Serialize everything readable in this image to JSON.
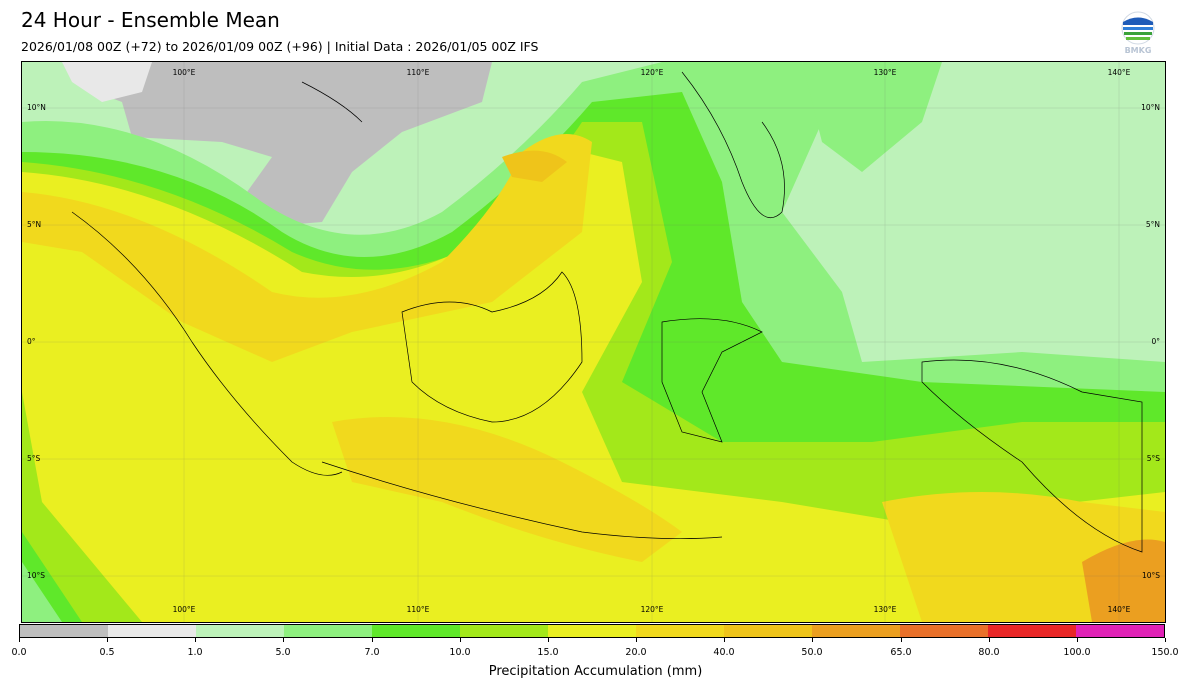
{
  "header": {
    "title": "24 Hour - Ensemble Mean",
    "subtitle": "2026/01/08 00Z (+72) to 2026/01/09 00Z (+96) | Initial Data : 2026/01/05 00Z IFS",
    "logo_text": "BMKG"
  },
  "map": {
    "region": "Indonesia",
    "lon_labels_top": [
      "100°E",
      "110°E",
      "120°E",
      "130°E",
      "140°E"
    ],
    "lon_labels_bottom": [
      "100°E",
      "110°E",
      "120°E",
      "130°E",
      "140°E"
    ],
    "lat_labels_left": [
      "10°N",
      "5°N",
      "0°",
      "5°S",
      "10°S"
    ],
    "lat_labels_right": [
      "10°N",
      "5°N",
      "0°",
      "5°S",
      "10°S"
    ]
  },
  "colorbar": {
    "label": "Precipitation Accumulation (mm)",
    "ticks": [
      "0.0",
      "0.5",
      "1.0",
      "5.0",
      "7.0",
      "10.0",
      "15.0",
      "20.0",
      "40.0",
      "50.0",
      "65.0",
      "80.0",
      "100.0",
      "150.0"
    ],
    "colors": [
      "#bebebe",
      "#e8e8e8",
      "#bdf2b9",
      "#8ef07f",
      "#5fe82a",
      "#a3e81a",
      "#eaef21",
      "#f1d91d",
      "#efc41a",
      "#eb9f20",
      "#e8702a",
      "#e82727",
      "#e022b6"
    ]
  }
}
